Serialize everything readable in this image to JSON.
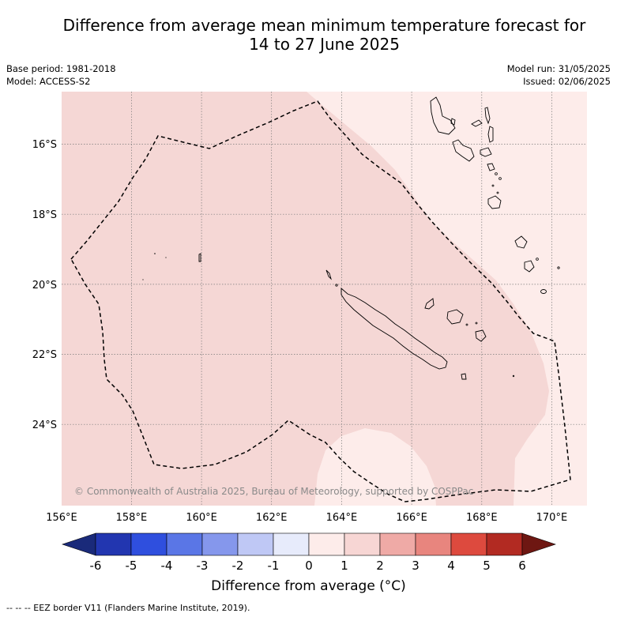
{
  "title_line1": "Difference from average mean minimum temperature forecast for",
  "title_line2": "14 to 27 June 2025",
  "base_period": "Base period: 1981-2018",
  "model": "Model: ACCESS-S2",
  "model_run": "Model run: 31/05/2025",
  "issued": "Issued: 02/06/2025",
  "copyright": "© Commonwealth of Australia 2025, Bureau of Meteorology, supported by COSPPac",
  "lat_labels": [
    "16°S",
    "18°S",
    "20°S",
    "22°S",
    "24°S"
  ],
  "lon_labels": [
    "156°E",
    "158°E",
    "160°E",
    "162°E",
    "164°E",
    "166°E",
    "168°E",
    "170°E"
  ],
  "colorbar": {
    "title": "Difference from average (°C)",
    "tick_labels": [
      "-6",
      "-5",
      "-4",
      "-3",
      "-2",
      "-1",
      "0",
      "1",
      "2",
      "3",
      "4",
      "5",
      "6"
    ],
    "colors": [
      "#1a2a7a",
      "#2236b0",
      "#2f4fde",
      "#5a76e6",
      "#8597ec",
      "#bfc8f5",
      "#e7ebfb",
      "#fdecea",
      "#f7d6d4",
      "#efaaa6",
      "#e8857e",
      "#dd4a3e",
      "#b22a22",
      "#6e1712"
    ]
  },
  "footnote": "-- -- -- EEZ border V11 (Flanders Marine Institute, 2019).",
  "map_colors": {
    "anomaly_0_1": "#fdecea",
    "anomaly_1_2": "#f5d7d5"
  }
}
